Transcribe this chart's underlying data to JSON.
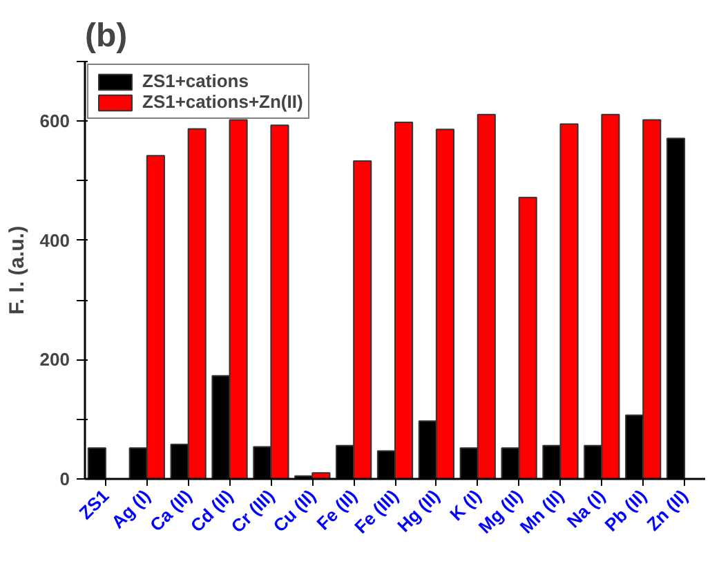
{
  "chart_data": {
    "type": "bar",
    "title": "(b)",
    "ylabel": "F. I. (a.u.)",
    "categories": [
      "ZS1",
      "Ag (I)",
      "Ca (II)",
      "Cd (II)",
      "Cr (III)",
      "Cu (II)",
      "Fe (II)",
      "Fe (III)",
      "Hg (II)",
      "K (I)",
      "Mg (II)",
      "Mn (II)",
      "Na (I)",
      "Pb (II)",
      "Zn (II)"
    ],
    "series": [
      {
        "name": "ZS1+cations",
        "color": "#000000",
        "values": [
          52,
          52,
          58,
          173,
          54,
          5,
          56,
          47,
          97,
          52,
          52,
          56,
          56,
          107,
          571
        ]
      },
      {
        "name": "ZS1+cations+Zn(II)",
        "color": "#ff0000",
        "values": [
          null,
          542,
          587,
          602,
          593,
          10,
          533,
          598,
          586,
          611,
          472,
          595,
          611,
          602,
          null
        ]
      }
    ],
    "ylim": [
      0,
      700
    ],
    "yticks": [
      0,
      {
        "value": 100,
        "label": null
      },
      200,
      {
        "value": 300,
        "label": null
      },
      400,
      {
        "value": 500,
        "label": null
      },
      600,
      {
        "value": 700,
        "label": null
      }
    ],
    "grid": false,
    "legend": "top left"
  }
}
